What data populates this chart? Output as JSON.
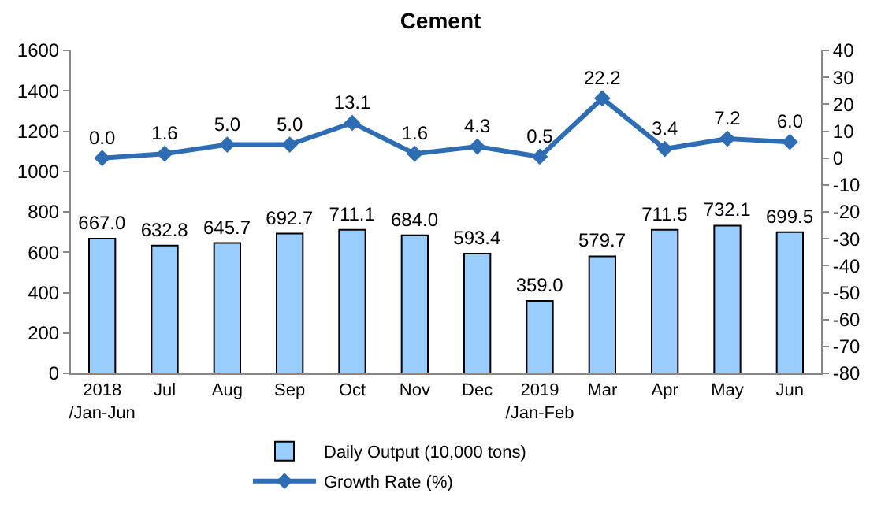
{
  "chart_data": {
    "type": "bar",
    "title": "Cement",
    "categories": [
      "2018\n/Jan-Jun",
      "Jul",
      "Aug",
      "Sep",
      "Oct",
      "Nov",
      "Dec",
      "2019\n/Jan-Feb",
      "Mar",
      "Apr",
      "May",
      "Jun"
    ],
    "series": [
      {
        "name": "Daily Output (10,000 tons)",
        "color": "#99ccff",
        "values": [
          667.0,
          632.8,
          645.7,
          692.7,
          711.1,
          684.0,
          593.4,
          359.0,
          579.7,
          711.5,
          732.1,
          699.5
        ],
        "value_labels": [
          "667.0",
          "632.8",
          "645.7",
          "692.7",
          "711.1",
          "684.0",
          "593.4",
          "359.0",
          "579.7",
          "711.5",
          "732.1",
          "699.5"
        ]
      },
      {
        "name": "Growth Rate (%)",
        "type": "line",
        "axis": "y2",
        "color": "#2e6db4",
        "marker": "diamond",
        "values": [
          0.0,
          1.6,
          5.0,
          5.0,
          13.1,
          1.6,
          4.3,
          0.5,
          22.2,
          3.4,
          7.2,
          6.0
        ],
        "value_labels": [
          "0.0",
          "1.6",
          "5.0",
          "5.0",
          "13.1",
          "1.6",
          "4.3",
          "0.5",
          "22.2",
          "3.4",
          "7.2",
          "6.0"
        ]
      }
    ],
    "ylim": [
      0,
      1600
    ],
    "yticks": [
      0,
      200,
      400,
      600,
      800,
      1000,
      1200,
      1400,
      1600
    ],
    "y2lim": [
      -80,
      40
    ],
    "y2ticks": [
      -80,
      -70,
      -60,
      -50,
      -40,
      -30,
      -20,
      -10,
      0,
      10,
      20,
      30,
      40
    ],
    "grid": false,
    "legend": "bottom"
  }
}
